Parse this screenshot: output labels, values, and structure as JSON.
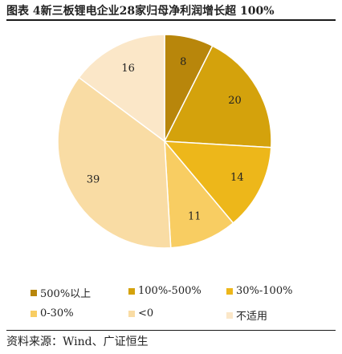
{
  "figure": {
    "title": "图表 4新三板锂电企业28家归母净利润增长超 100%",
    "source": "资料来源：Wind、广证恒生"
  },
  "chart_data": {
    "type": "pie",
    "title": "图表 4新三板锂电企业28家归母净利润增长超 100%",
    "slices": [
      {
        "label": "500%以上",
        "value": 8,
        "color": "#b8860b"
      },
      {
        "label": "100%-500%",
        "value": 20,
        "color": "#d4a20c"
      },
      {
        "label": "30%-100%",
        "value": 14,
        "color": "#edb71a"
      },
      {
        "label": "0-30%",
        "value": 11,
        "color": "#f8cd62"
      },
      {
        "label": "<0",
        "value": 39,
        "color": "#f9dca4"
      },
      {
        "label": "不适用",
        "value": 16,
        "color": "#fbe7c8"
      }
    ],
    "legend_position": "bottom",
    "start": "12 o'clock, clockwise"
  }
}
